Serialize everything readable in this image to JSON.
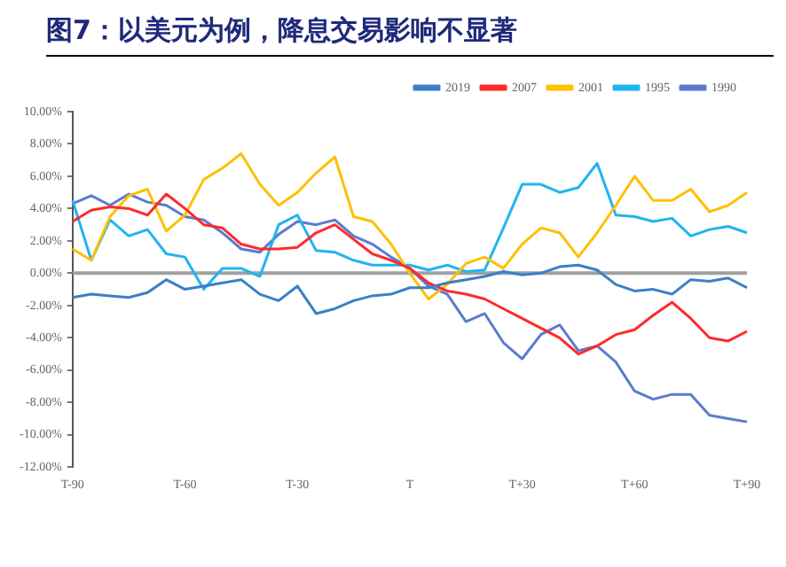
{
  "chart_data": {
    "type": "line",
    "title": "图7：以美元为例，降息交易影响不显著",
    "categories": [
      "T-90",
      null,
      null,
      null,
      null,
      null,
      "T-60",
      null,
      null,
      null,
      null,
      null,
      "T-30",
      null,
      null,
      null,
      null,
      null,
      "T",
      null,
      null,
      null,
      null,
      null,
      "T+30",
      null,
      null,
      null,
      null,
      null,
      "T+60",
      null,
      null,
      null,
      null,
      null,
      "T+90"
    ],
    "series": [
      {
        "name": "2019",
        "color": "#3a7fc8",
        "values": [
          -1.5,
          -1.3,
          -1.4,
          -1.5,
          -1.2,
          -0.4,
          -1.0,
          -0.8,
          -0.6,
          -0.4,
          -1.3,
          -1.7,
          -0.8,
          -2.5,
          -2.2,
          -1.7,
          -1.4,
          -1.3,
          -0.9,
          -0.9,
          -0.6,
          -0.4,
          -0.2,
          0.1,
          -0.1,
          0.0,
          0.4,
          0.5,
          0.2,
          -0.7,
          -1.1,
          -1.0,
          -1.3,
          -0.4,
          -0.5,
          -0.3,
          -0.9
        ]
      },
      {
        "name": "2007",
        "color": "#ff2a2a",
        "values": [
          3.2,
          3.9,
          4.1,
          4.0,
          3.6,
          4.9,
          4.0,
          3.0,
          2.8,
          1.8,
          1.5,
          1.5,
          1.6,
          2.5,
          3.0,
          2.1,
          1.2,
          0.8,
          0.3,
          -0.6,
          -1.1,
          -1.3,
          -1.6,
          -2.2,
          -2.8,
          -3.4,
          -4.0,
          -5.0,
          -4.5,
          -3.8,
          -3.5,
          -2.6,
          -1.8,
          -2.8,
          -4.0,
          -4.2,
          -3.6
        ]
      },
      {
        "name": "2001",
        "color": "#ffc000",
        "values": [
          1.5,
          0.8,
          3.5,
          4.8,
          5.2,
          2.6,
          3.6,
          5.8,
          6.5,
          7.4,
          5.5,
          4.2,
          5.0,
          6.2,
          7.2,
          3.5,
          3.2,
          1.8,
          0.0,
          -1.6,
          -0.7,
          0.6,
          1.0,
          0.3,
          1.8,
          2.8,
          2.5,
          1.0,
          2.5,
          4.2,
          6.0,
          4.5,
          4.5,
          5.2,
          3.8,
          4.2,
          5.0
        ]
      },
      {
        "name": "1995",
        "color": "#1fb5f0",
        "values": [
          4.5,
          0.8,
          3.3,
          2.3,
          2.7,
          1.2,
          1.0,
          -1.0,
          0.3,
          0.3,
          -0.2,
          3.0,
          3.6,
          1.4,
          1.3,
          0.8,
          0.5,
          0.5,
          0.5,
          0.2,
          0.5,
          0.1,
          0.2,
          2.8,
          5.5,
          5.5,
          5.0,
          5.3,
          6.8,
          3.6,
          3.5,
          3.2,
          3.4,
          2.3,
          2.7,
          2.9,
          2.5
        ]
      },
      {
        "name": "1990",
        "color": "#5b7bd0",
        "values": [
          4.3,
          4.8,
          4.2,
          4.9,
          4.4,
          4.2,
          3.5,
          3.3,
          2.5,
          1.5,
          1.3,
          2.4,
          3.2,
          3.0,
          3.3,
          2.3,
          1.8,
          1.0,
          0.3,
          -0.8,
          -1.3,
          -3.0,
          -2.5,
          -4.3,
          -5.3,
          -3.8,
          -3.2,
          -4.8,
          -4.5,
          -5.5,
          -7.3,
          -7.8,
          -7.5,
          -7.5,
          -8.8,
          -9.0,
          -9.2
        ]
      }
    ],
    "ref_lines": [
      {
        "axis": "y",
        "value": 0,
        "color": "#a0a0a0"
      }
    ],
    "ylim": [
      -12,
      10
    ],
    "yticks": [
      {
        "value": -12,
        "label": "-12.00%"
      },
      {
        "value": -10,
        "label": "-10.00%"
      },
      {
        "value": -8,
        "label": "-8.00%"
      },
      {
        "value": -6,
        "label": "-6.00%"
      },
      {
        "value": -4,
        "label": "-4.00%"
      },
      {
        "value": -2,
        "label": "-2.00%"
      },
      {
        "value": 0,
        "label": "0.00%"
      },
      {
        "value": 2,
        "label": "2.00%"
      },
      {
        "value": 4,
        "label": "4.00%"
      },
      {
        "value": 6,
        "label": "6.00%"
      },
      {
        "value": 8,
        "label": "8.00%"
      },
      {
        "value": 10,
        "label": "10.00%"
      }
    ],
    "grid": false,
    "legend": "top right",
    "marker": "none",
    "line_style": "solid"
  }
}
